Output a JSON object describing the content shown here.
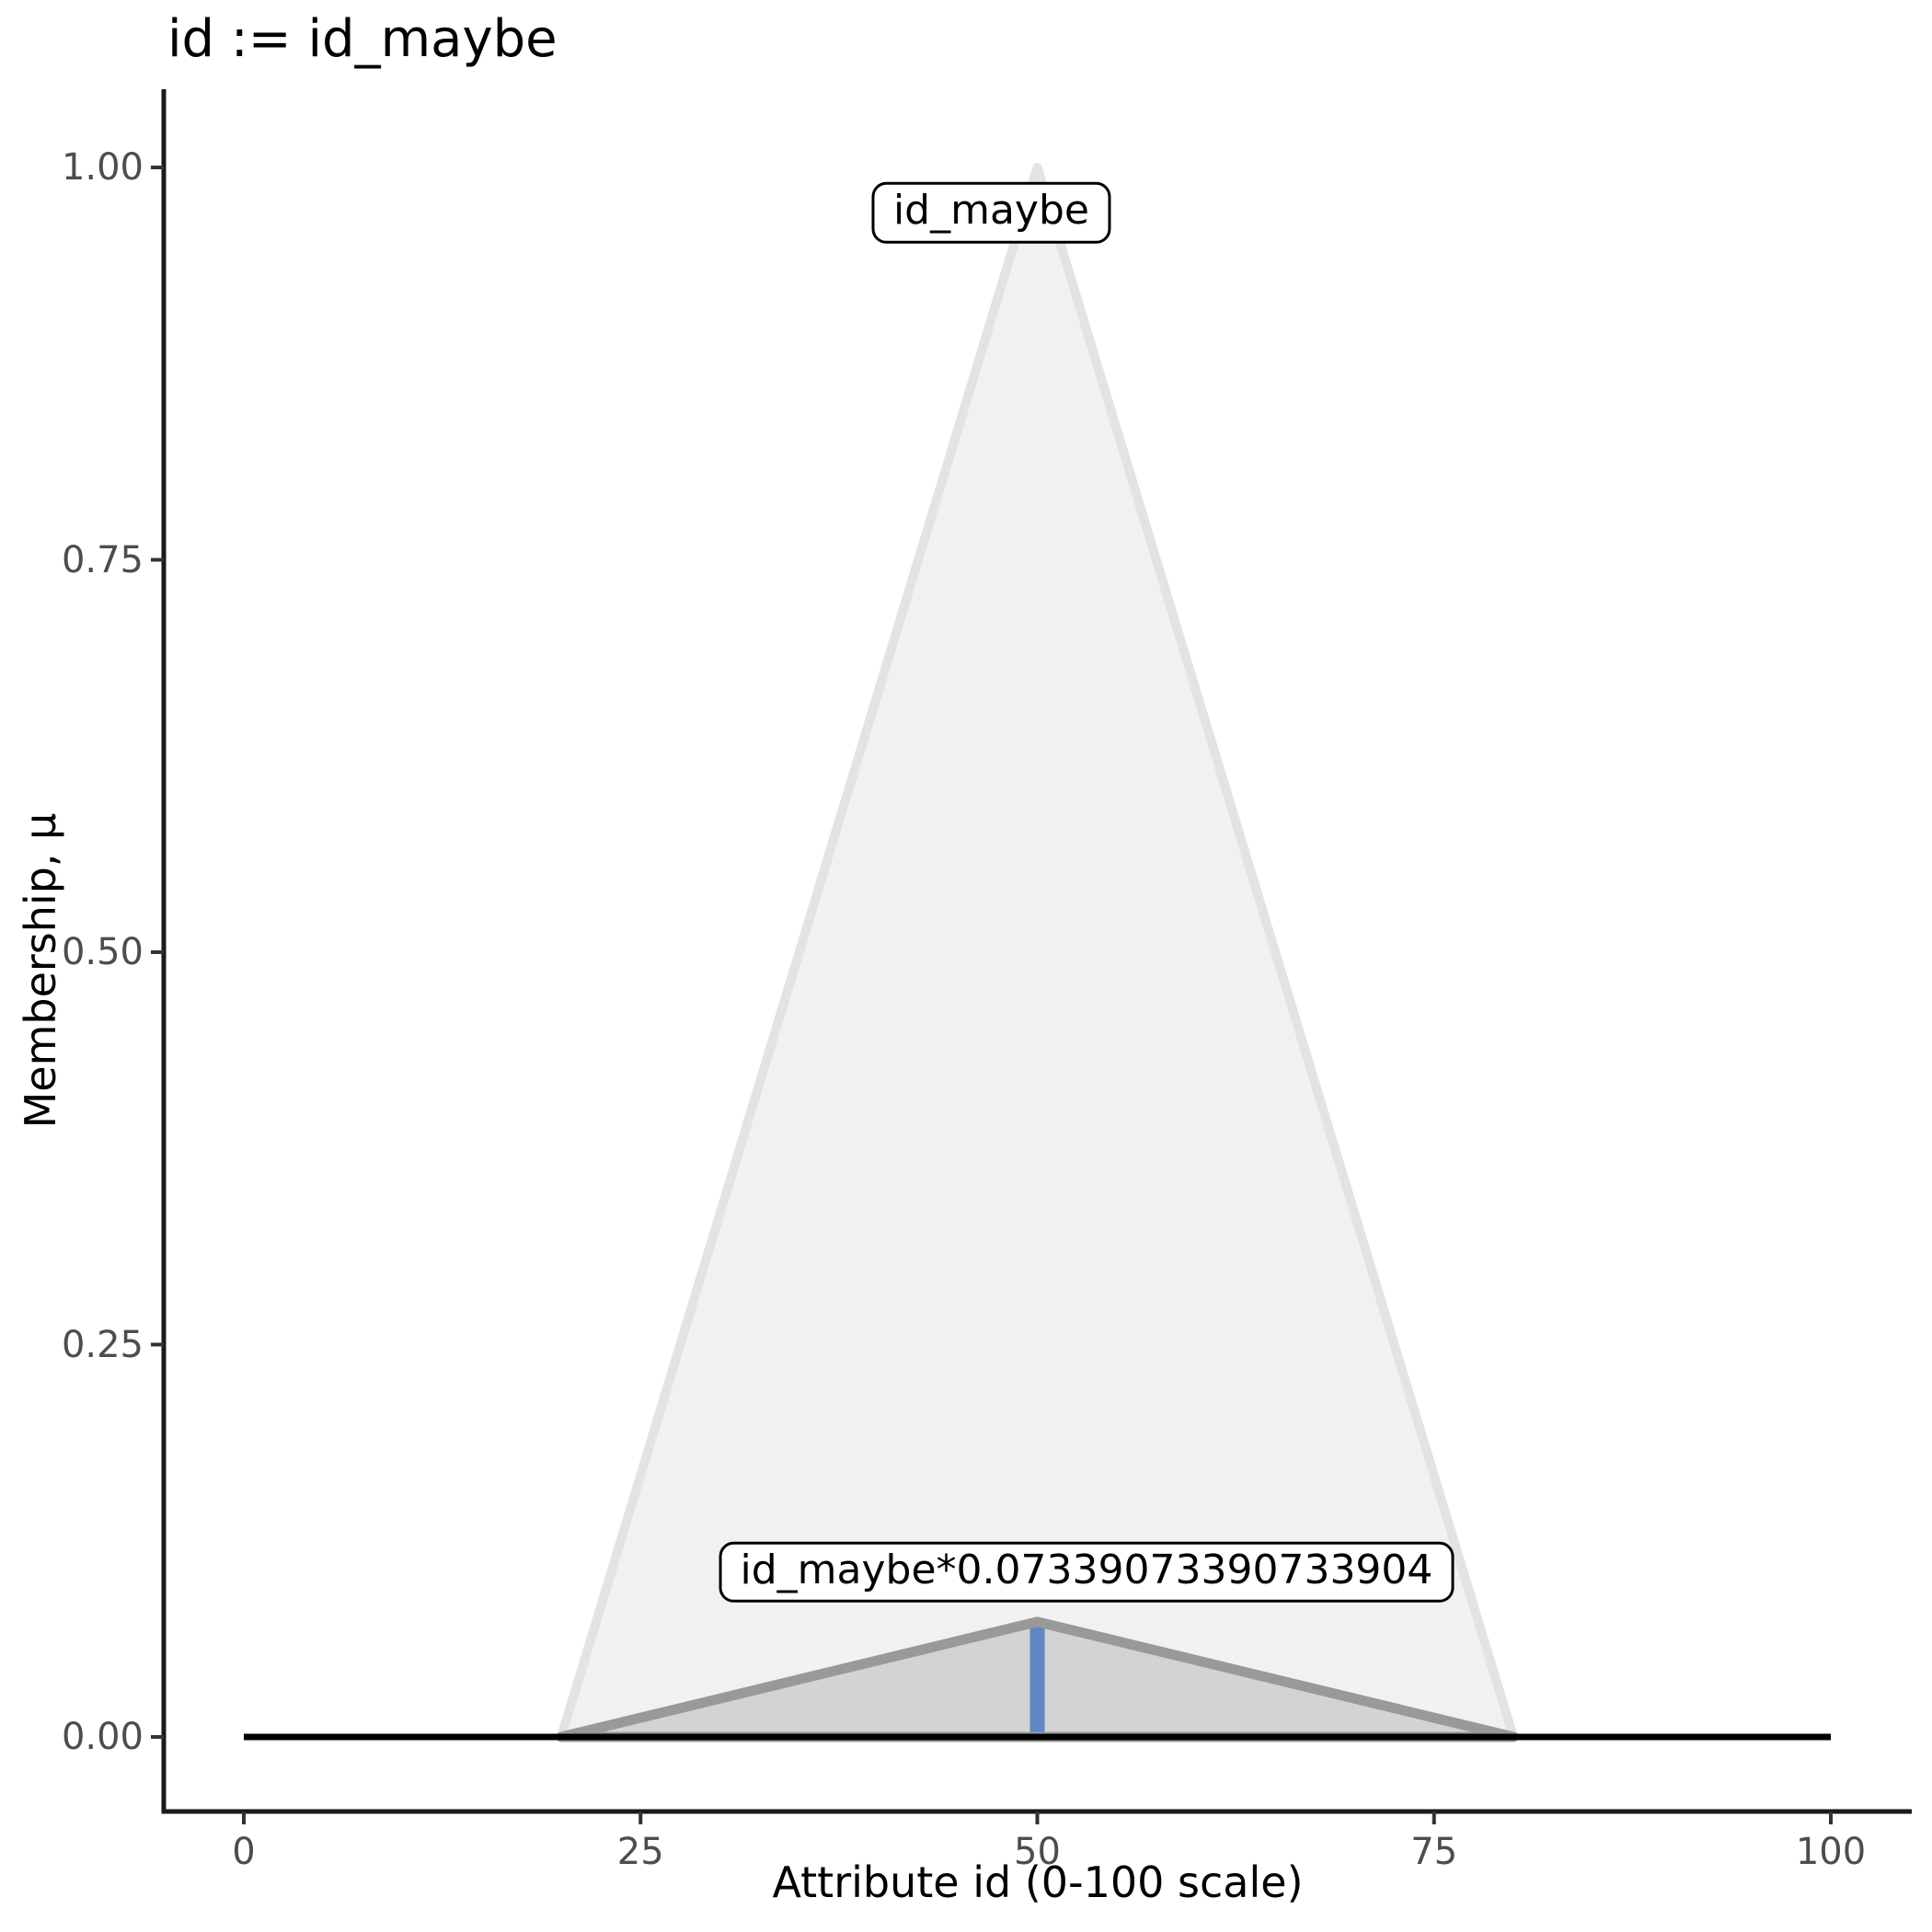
{
  "title": "id := id_maybe",
  "chart_data": {
    "type": "area",
    "title": "id := id_maybe",
    "xlabel": "Attribute id (0-100 scale)",
    "ylabel": "Membership, μ",
    "xlim": [
      0,
      100
    ],
    "ylim": [
      0,
      1
    ],
    "grid": false,
    "legend": "none",
    "x_ticks": {
      "values": [
        0,
        25,
        50,
        75,
        100
      ],
      "labels": [
        "0",
        "25",
        "50",
        "75",
        "100"
      ]
    },
    "y_ticks": {
      "values": [
        1.0,
        0.75,
        0.5,
        0.25,
        0.0
      ],
      "labels": [
        "1.00",
        "0.75",
        "0.50",
        "0.25",
        "0.00"
      ]
    },
    "colors": {
      "axis": "#1a1a1a",
      "tick_mark": "#333333",
      "tick_label": "#4d4d4d",
      "fuzzy_set_fill": "#f1f1f1",
      "fuzzy_set_stroke": "#e3e3e3",
      "scaled_set_fill": "#d3d3d3",
      "scaled_set_stroke": "#999999",
      "crisp_line": "#6286c2",
      "baseline": "#000000"
    },
    "series": [
      {
        "name": "id_maybe",
        "kind": "polygon",
        "role": "fuzzy-set-triangle",
        "points": [
          [
            20,
            0
          ],
          [
            50,
            1
          ],
          [
            80,
            0
          ]
        ],
        "fill": "#f1f1f1",
        "stroke": "#e3e3e3",
        "stroke_width": 10
      },
      {
        "name": "id_maybe_scaled_fill",
        "kind": "polygon",
        "role": "scaled-set-fill",
        "points": [
          [
            20,
            0
          ],
          [
            50,
            0.07339073390733904
          ],
          [
            80,
            0
          ]
        ],
        "fill": "#d3d3d3",
        "stroke": "none",
        "stroke_width": 0
      },
      {
        "name": "crisp_input_line",
        "kind": "vline",
        "x": 50,
        "y0": 0,
        "y1": 0.07339073390733904,
        "stroke": "#6286c2",
        "stroke_width": 16
      },
      {
        "name": "id_maybe_scaled_outline",
        "kind": "polygon",
        "role": "scaled-set-outline",
        "points": [
          [
            20,
            0
          ],
          [
            50,
            0.07339073390733904
          ],
          [
            80,
            0
          ]
        ],
        "fill": "none",
        "stroke": "#999999",
        "stroke_width": 11
      },
      {
        "name": "zero_baseline",
        "kind": "hline",
        "y": 0,
        "x0": 0,
        "x1": 100,
        "stroke": "#000000",
        "stroke_width": 7
      }
    ],
    "annotations": [
      {
        "text": "id_maybe",
        "x": 47.1,
        "y": 0.971
      },
      {
        "text": "id_maybe*0.07339073390733904",
        "x": 53.1,
        "y": 0.105
      }
    ]
  }
}
